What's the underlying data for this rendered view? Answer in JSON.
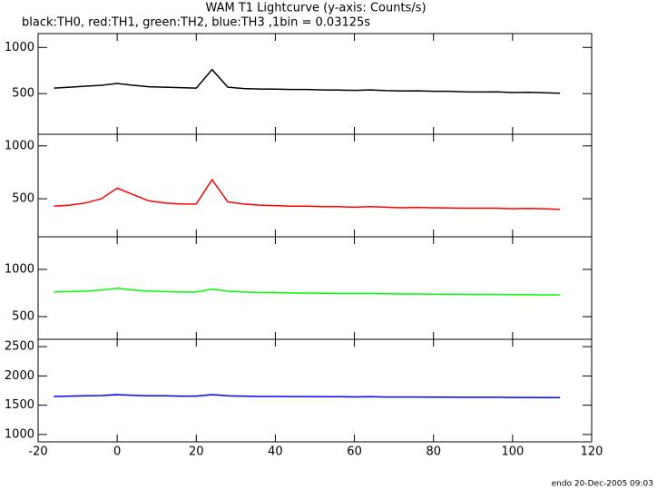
{
  "title": "WAM T1 Lightcurve (y-axis: Counts/s)",
  "subtitle": "black:TH0, red:TH1, green:TH2, blue:TH3 ,1bin = 0.03125s",
  "footer": "endo 20-Dec-2005 09:03",
  "chart_data": [
    {
      "type": "line",
      "ylim": [
        60,
        1150
      ],
      "yticks": [
        500,
        1000
      ],
      "x": [
        -16,
        -12,
        -8,
        -4,
        0,
        4,
        8,
        12,
        16,
        20,
        24,
        28,
        32,
        36,
        40,
        44,
        48,
        52,
        56,
        60,
        64,
        68,
        72,
        76,
        80,
        84,
        88,
        92,
        96,
        100,
        104,
        108,
        112
      ],
      "series": [
        {
          "color": "#000000",
          "values": [
            560,
            570,
            580,
            590,
            610,
            590,
            575,
            570,
            565,
            560,
            760,
            570,
            555,
            550,
            548,
            545,
            545,
            540,
            538,
            535,
            540,
            532,
            528,
            530,
            525,
            525,
            520,
            518,
            520,
            512,
            515,
            510,
            505
          ]
        }
      ]
    },
    {
      "type": "line",
      "ylim": [
        140,
        1110
      ],
      "yticks": [
        500,
        1000
      ],
      "x": [
        -16,
        -12,
        -8,
        -4,
        0,
        4,
        8,
        12,
        16,
        20,
        24,
        28,
        32,
        36,
        40,
        44,
        48,
        52,
        56,
        60,
        64,
        68,
        72,
        76,
        80,
        84,
        88,
        92,
        96,
        100,
        104,
        108,
        112
      ],
      "series": [
        {
          "color": "#ff0000",
          "values": [
            430,
            440,
            460,
            500,
            600,
            540,
            480,
            460,
            450,
            450,
            680,
            470,
            450,
            440,
            435,
            430,
            430,
            425,
            425,
            420,
            425,
            420,
            415,
            418,
            415,
            412,
            410,
            410,
            410,
            405,
            408,
            405,
            400
          ]
        }
      ]
    },
    {
      "type": "line",
      "ylim": [
        260,
        1345
      ],
      "yticks": [
        500,
        1000
      ],
      "x": [
        -16,
        -12,
        -8,
        -4,
        0,
        4,
        8,
        12,
        16,
        20,
        24,
        28,
        32,
        36,
        40,
        44,
        48,
        52,
        56,
        60,
        64,
        68,
        72,
        76,
        80,
        84,
        88,
        92,
        96,
        100,
        104,
        108,
        112
      ],
      "series": [
        {
          "color": "#00ff00",
          "values": [
            760,
            765,
            770,
            780,
            800,
            780,
            770,
            765,
            760,
            760,
            790,
            770,
            760,
            755,
            755,
            750,
            750,
            748,
            745,
            745,
            745,
            742,
            740,
            740,
            738,
            738,
            736,
            735,
            735,
            732,
            733,
            730,
            730
          ]
        }
      ]
    },
    {
      "type": "line",
      "ylim": [
        875,
        2625
      ],
      "yticks": [
        1000,
        1500,
        2000,
        2500
      ],
      "xlim": [
        -20,
        120
      ],
      "xticks": [
        -20,
        0,
        20,
        40,
        60,
        80,
        100,
        120
      ],
      "x": [
        -16,
        -12,
        -8,
        -4,
        0,
        4,
        8,
        12,
        16,
        20,
        24,
        28,
        32,
        36,
        40,
        44,
        48,
        52,
        56,
        60,
        64,
        68,
        72,
        76,
        80,
        84,
        88,
        92,
        96,
        100,
        104,
        108,
        112
      ],
      "series": [
        {
          "color": "#0000ff",
          "values": [
            1650,
            1655,
            1660,
            1665,
            1680,
            1670,
            1660,
            1660,
            1655,
            1655,
            1680,
            1660,
            1655,
            1650,
            1650,
            1648,
            1648,
            1645,
            1645,
            1642,
            1645,
            1640,
            1640,
            1640,
            1638,
            1638,
            1636,
            1635,
            1635,
            1632,
            1633,
            1630,
            1630
          ]
        }
      ]
    }
  ]
}
